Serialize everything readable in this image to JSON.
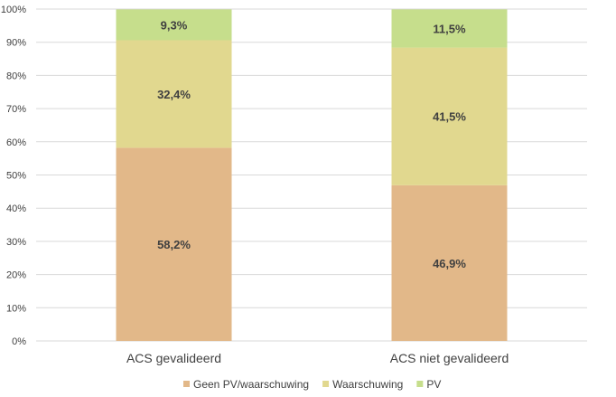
{
  "chart_data": {
    "type": "bar",
    "stacked": "percent",
    "categories": [
      "ACS gevalideerd",
      "ACS niet gevalideerd"
    ],
    "series": [
      {
        "name": "Geen PV/waarschuwing",
        "values": [
          58.2,
          46.9
        ],
        "labels": [
          "58,2%",
          "46,9%"
        ],
        "color": "#E2B889"
      },
      {
        "name": "Waarschuwing",
        "values": [
          32.4,
          41.5
        ],
        "labels": [
          "32,4%",
          "41,5%"
        ],
        "color": "#E1D88F"
      },
      {
        "name": "PV",
        "values": [
          9.3,
          11.5
        ],
        "labels": [
          "9,3%",
          "11,5%"
        ],
        "color": "#C6DE8C"
      }
    ],
    "ylim": [
      0,
      100
    ],
    "yticks": [
      "0%",
      "10%",
      "20%",
      "30%",
      "40%",
      "50%",
      "60%",
      "70%",
      "80%",
      "90%",
      "100%"
    ],
    "grid": true,
    "legend": "bottom",
    "title": "",
    "xlabel": "",
    "ylabel": ""
  }
}
